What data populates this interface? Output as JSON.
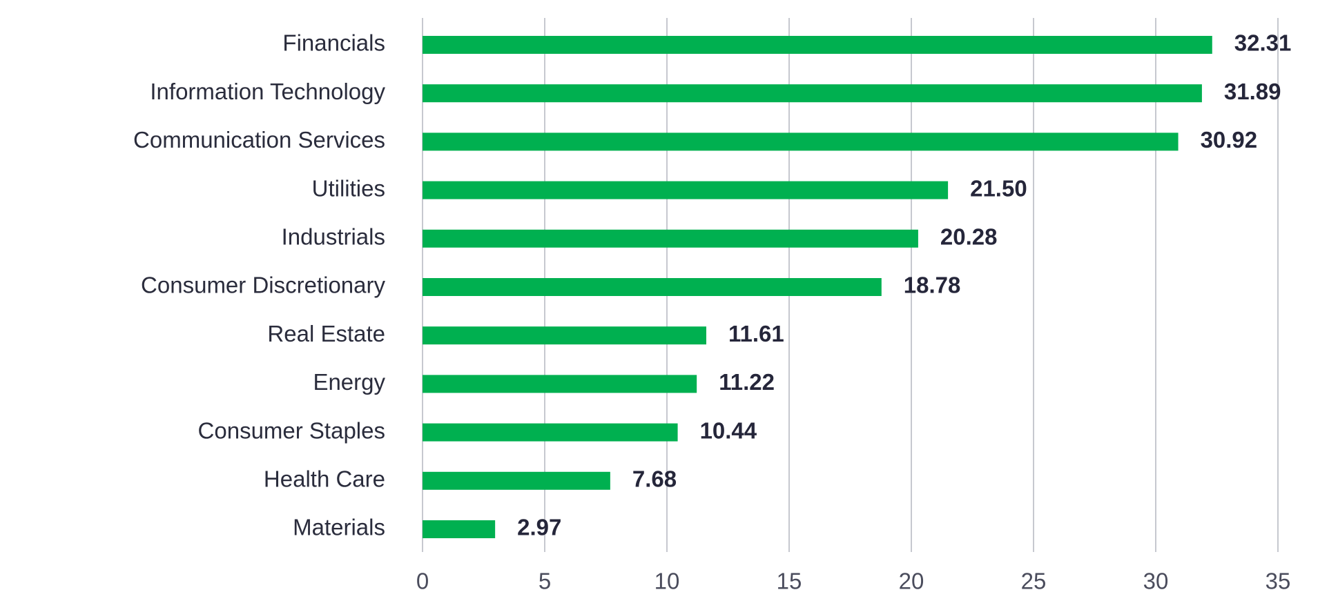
{
  "chart_data": {
    "type": "bar",
    "orientation": "horizontal",
    "title": "",
    "xlabel": "",
    "ylabel": "",
    "categories": [
      "Financials",
      "Information Technology",
      "Communication Services",
      "Utilities",
      "Industrials",
      "Consumer Discretionary",
      "Real Estate",
      "Energy",
      "Consumer Staples",
      "Health Care",
      "Materials"
    ],
    "values": [
      32.31,
      31.89,
      30.92,
      21.5,
      20.28,
      18.78,
      11.61,
      11.22,
      10.44,
      7.68,
      2.97
    ],
    "value_labels": [
      "32.31",
      "31.89",
      "30.92",
      "21.50",
      "20.28",
      "18.78",
      "11.61",
      "11.22",
      "10.44",
      "7.68",
      "2.97"
    ],
    "xlim": [
      0,
      35
    ],
    "x_ticks": [
      0,
      5,
      10,
      15,
      20,
      25,
      30,
      35
    ],
    "x_tick_labels": [
      "0",
      "5",
      "10",
      "15",
      "20",
      "25",
      "30",
      "35"
    ],
    "grid": "vertical",
    "legend": "none",
    "bar_color": "#00b050"
  }
}
